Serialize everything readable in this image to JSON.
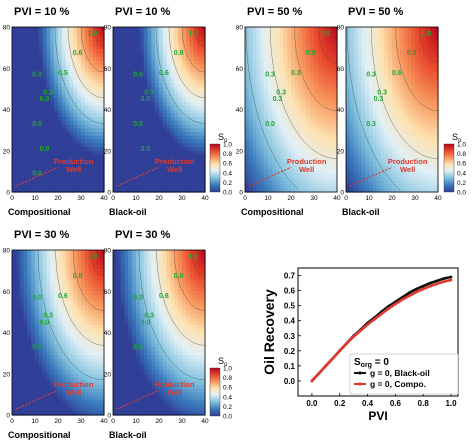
{
  "figure": {
    "panels": [
      {
        "id": "p1",
        "title": "PVI = 10 %",
        "model": "Compositional",
        "pvi": 10,
        "contour_labels": [
          "1.0",
          "0.6",
          "0.5",
          "0.3",
          "0.0",
          "0.0",
          "0.0",
          "0.0",
          "0.0"
        ],
        "well_label": [
          "Production",
          "Well"
        ]
      },
      {
        "id": "p2",
        "title": "PVI = 10 %",
        "model": "Black-oil",
        "pvi": 10,
        "contour_labels": [
          "1.0",
          "0.8",
          "0.6",
          "0.3",
          "0.0",
          "0.0",
          "0.0",
          "0.0"
        ],
        "well_label": [
          "Production",
          "Well"
        ]
      },
      {
        "id": "p3",
        "title": "PVI = 50 %",
        "model": "Compositional",
        "pvi": 50,
        "contour_labels": [
          "0.6",
          "0.5",
          "0.3",
          "0.3",
          "0.3",
          "0.3",
          "0.0"
        ],
        "well_label": [
          "Production",
          "Well"
        ]
      },
      {
        "id": "p4",
        "title": "PVI = 50 %",
        "model": "Black-oil",
        "pvi": 50,
        "contour_labels": [
          "1.0",
          "0.9",
          "0.6",
          "0.3",
          "0.3",
          "0.3",
          "0.3"
        ],
        "well_label": [
          "Production",
          "Well"
        ]
      },
      {
        "id": "p5",
        "title": "PVI = 30 %",
        "model": "Compositional",
        "pvi": 30,
        "contour_labels": [
          "1.0",
          "0.8",
          "0.6",
          "0.3",
          "0.0",
          "0.0",
          "0.0"
        ],
        "well_label": [
          "Production",
          "Well"
        ]
      },
      {
        "id": "p6",
        "title": "PVI = 30 %",
        "model": "Black-oil",
        "pvi": 30,
        "contour_labels": [
          "1.0",
          "0.8",
          "0.6",
          "0.3",
          "0.0",
          "0.0",
          "0.0"
        ],
        "well_label": [
          "Production",
          "Well"
        ]
      }
    ],
    "x_ticks": [
      "0",
      "10",
      "20",
      "30",
      "40"
    ],
    "y_ticks": [
      "0",
      "20",
      "40",
      "60",
      "80"
    ],
    "colorbar": {
      "label": "S",
      "subscript": "o",
      "ticks": [
        "1.0",
        "0.8",
        "0.6",
        "0.4",
        "0.2",
        "0.0"
      ],
      "colors": [
        "#b3081f",
        "#e8452a",
        "#f7955b",
        "#fde2b0",
        "#e2f0f6",
        "#86c4df",
        "#3a7bbd",
        "#303f97"
      ]
    }
  },
  "chart_data": {
    "type": "line",
    "xlabel": "PVI",
    "ylabel": "Oil Recovery",
    "xlim": [
      -0.1,
      1.05
    ],
    "ylim": [
      -0.1,
      0.75
    ],
    "x_ticks": [
      "0.0",
      "0.2",
      "0.4",
      "0.6",
      "0.8",
      "1.0"
    ],
    "y_ticks": [
      "0.0",
      "0.1",
      "0.2",
      "0.3",
      "0.4",
      "0.5",
      "0.6",
      "0.7"
    ],
    "legend_title": "S",
    "legend_title_sub": "org",
    "legend_title_rest": " = 0",
    "legend_position": "bottom-right",
    "series": [
      {
        "name": "g = 0, Black-oil",
        "color": "#111111",
        "x": [
          0,
          0.05,
          0.1,
          0.15,
          0.2,
          0.25,
          0.3,
          0.35,
          0.4,
          0.45,
          0.5,
          0.55,
          0.6,
          0.65,
          0.7,
          0.75,
          0.8,
          0.85,
          0.9,
          0.95,
          1.0
        ],
        "y": [
          0,
          0.05,
          0.1,
          0.15,
          0.2,
          0.25,
          0.3,
          0.34,
          0.385,
          0.42,
          0.46,
          0.495,
          0.525,
          0.555,
          0.585,
          0.61,
          0.63,
          0.65,
          0.665,
          0.68,
          0.69
        ]
      },
      {
        "name": "g = 0, Compo.",
        "color": "#e03a2e",
        "x": [
          0,
          0.05,
          0.1,
          0.15,
          0.2,
          0.25,
          0.3,
          0.35,
          0.4,
          0.45,
          0.5,
          0.55,
          0.6,
          0.65,
          0.7,
          0.75,
          0.8,
          0.85,
          0.9,
          0.95,
          1.0
        ],
        "y": [
          0,
          0.05,
          0.1,
          0.15,
          0.2,
          0.25,
          0.295,
          0.335,
          0.375,
          0.41,
          0.445,
          0.48,
          0.51,
          0.54,
          0.565,
          0.59,
          0.61,
          0.63,
          0.645,
          0.66,
          0.67
        ]
      }
    ]
  }
}
